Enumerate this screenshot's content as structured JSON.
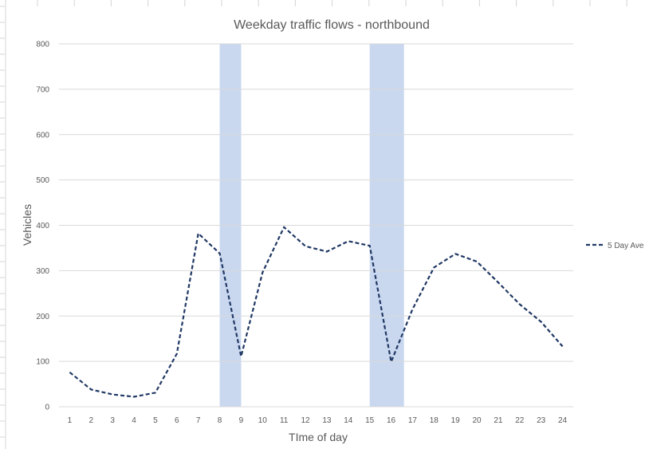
{
  "colors": {
    "series": "#203864",
    "highlight": "#c9d8ef",
    "gridline": "#d9d9d9",
    "text": "#595959",
    "sheet_grid": "#d4d4d4"
  },
  "chart_data": {
    "type": "line",
    "title": "Weekday traffic flows - northbound",
    "xlabel": "TIme of day",
    "ylabel": "Vehicles",
    "categories": [
      "1",
      "2",
      "3",
      "4",
      "5",
      "6",
      "7",
      "8",
      "9",
      "10",
      "11",
      "12",
      "13",
      "14",
      "15",
      "16",
      "17",
      "18",
      "19",
      "20",
      "21",
      "22",
      "23",
      "24"
    ],
    "ylim": [
      0,
      800
    ],
    "yticks": [
      0,
      100,
      200,
      300,
      400,
      500,
      600,
      700,
      800
    ],
    "grid": true,
    "legend_position": "right",
    "line_style": "dashed",
    "series": [
      {
        "name": "5 Day Ave",
        "values": [
          76,
          38,
          27,
          22,
          31,
          117,
          382,
          338,
          111,
          296,
          396,
          354,
          342,
          365,
          355,
          99,
          215,
          307,
          337,
          320,
          274,
          226,
          187,
          133
        ]
      }
    ],
    "highlight_ranges": [
      {
        "from": 8,
        "to": 9
      },
      {
        "from": 15,
        "to": 16.6
      }
    ]
  }
}
